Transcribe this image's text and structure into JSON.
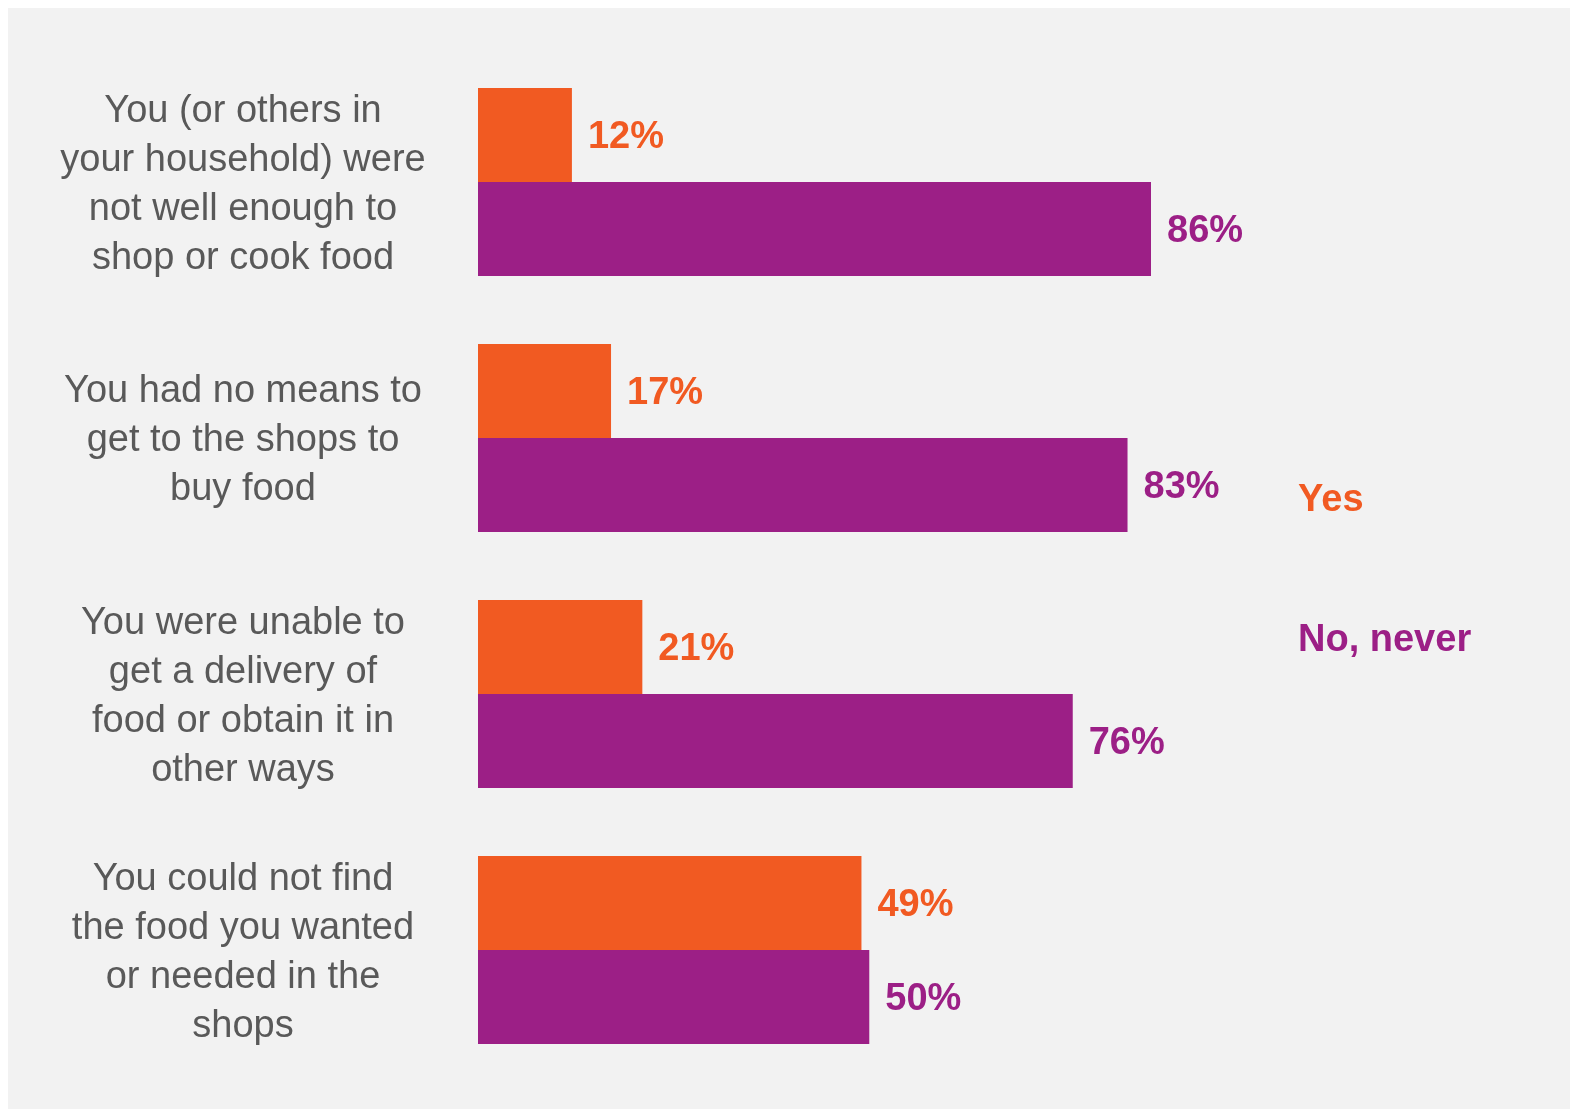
{
  "chart_data": {
    "type": "bar",
    "orientation": "horizontal",
    "categories": [
      "You (or others in your household) were not well enough to shop or cook food",
      "You had no means to get to the shops to buy food",
      "You were unable to get a delivery of food or obtain it in other ways",
      "You could not find the food you wanted or needed in the shops"
    ],
    "series": [
      {
        "name": "Yes",
        "color": "#f15a22",
        "values": [
          12,
          17,
          21,
          49
        ],
        "value_labels": [
          "12%",
          "17%",
          "21%",
          "49%"
        ]
      },
      {
        "name": "No, never",
        "color": "#9c1f86",
        "values": [
          86,
          83,
          76,
          50
        ],
        "value_labels": [
          "86%",
          "83%",
          "76%",
          "50%"
        ]
      }
    ],
    "tick_labels": "y",
    "legend": "right"
  }
}
